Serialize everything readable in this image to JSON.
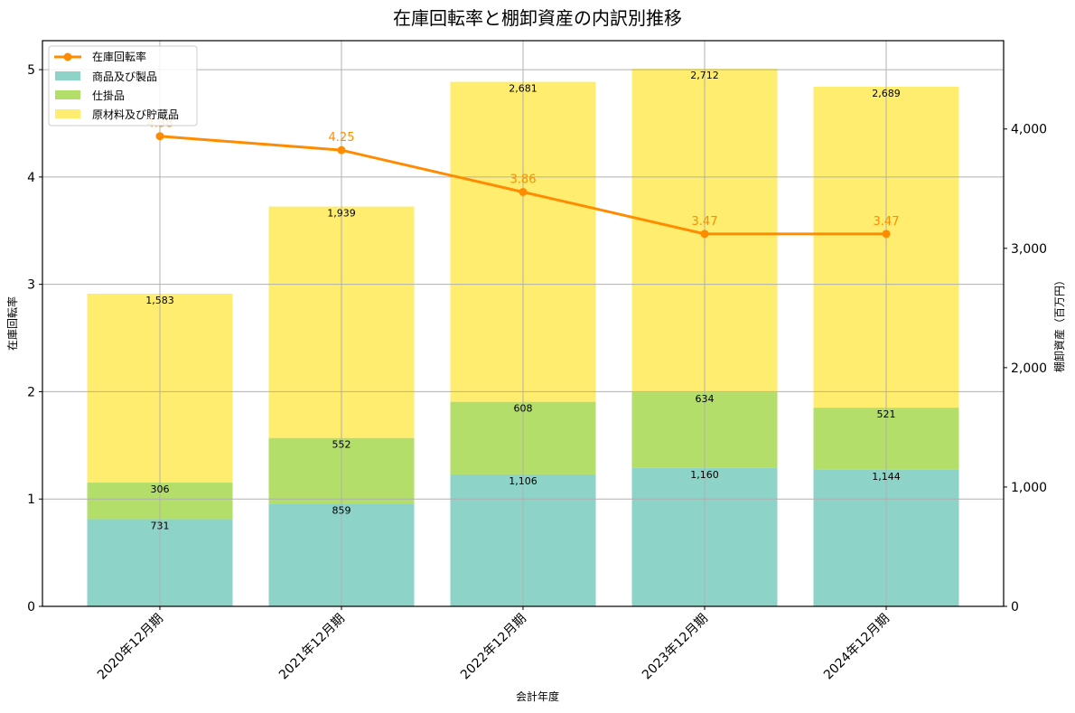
{
  "chart_data": {
    "type": "bar+line",
    "title": "在庫回転率と棚卸資産の内訳別推移",
    "xlabel": "会計年度",
    "ylabel_left": "在庫回転率",
    "ylabel_right": "棚卸資産（百万円）",
    "categories": [
      "2020年12月期",
      "2021年12月期",
      "2022年12月期",
      "2023年12月期",
      "2024年12月期"
    ],
    "bar_series": [
      {
        "name": "商品及び製品",
        "color": "#8dd3c7",
        "values": [
          731,
          859,
          1106,
          1160,
          1144
        ],
        "labels": [
          "731",
          "859",
          "1,106",
          "1,160",
          "1,144"
        ]
      },
      {
        "name": "仕掛品",
        "color": "#b3de69",
        "values": [
          306,
          552,
          608,
          634,
          521
        ],
        "labels": [
          "306",
          "552",
          "608",
          "634",
          "521"
        ]
      },
      {
        "name": "原材料及び貯蔵品",
        "color": "#ffed6f",
        "values": [
          1583,
          1939,
          2681,
          2712,
          2689
        ],
        "labels": [
          "1,583",
          "1,939",
          "2,681",
          "2,712",
          "2,689"
        ]
      }
    ],
    "line_series": {
      "name": "在庫回転率",
      "color": "#ff8c00",
      "values": [
        4.38,
        4.25,
        3.86,
        3.47,
        3.47
      ],
      "labels": [
        "4.38",
        "4.25",
        "3.86",
        "3.47",
        "3.47"
      ]
    },
    "ylim_left": [
      0,
      5.27
    ],
    "yticks_left": [
      "0",
      "1",
      "2",
      "3",
      "4",
      "5"
    ],
    "ylim_right": [
      0,
      4740
    ],
    "yticks_right": [
      "0",
      "1,000",
      "2,000",
      "3,000",
      "4,000"
    ],
    "grid": true,
    "legend_position": "upper left"
  }
}
